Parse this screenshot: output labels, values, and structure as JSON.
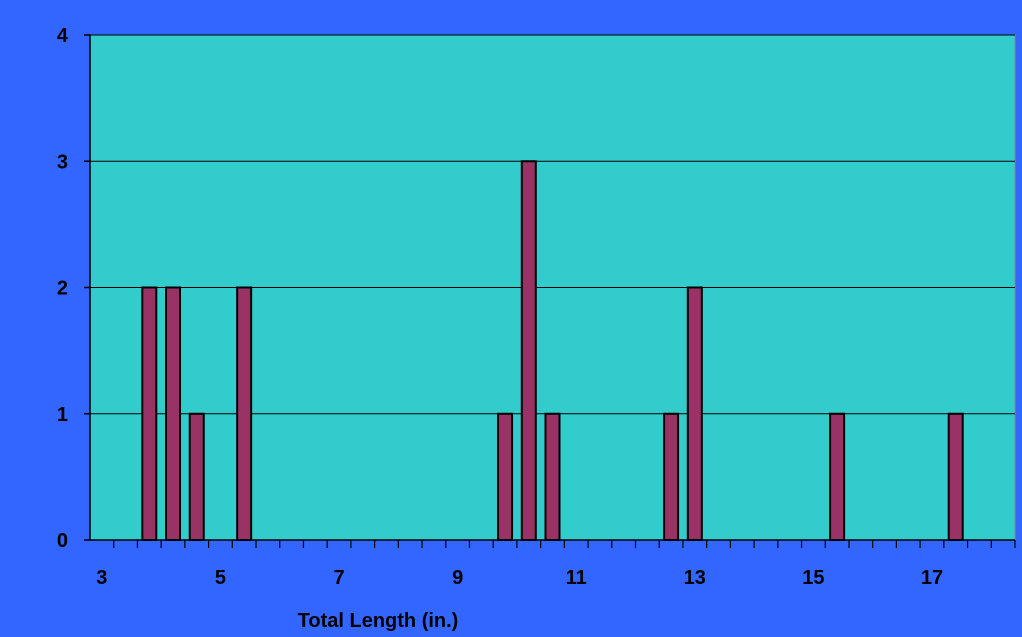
{
  "chart_data": {
    "type": "bar",
    "title": "",
    "xlabel": "Total Length (in.)",
    "ylabel": "",
    "x": [
      3.8,
      4.2,
      4.6,
      5.4,
      9.8,
      10.2,
      10.6,
      12.6,
      13.0,
      15.4,
      17.4
    ],
    "values": [
      2,
      2,
      1,
      2,
      1,
      3,
      1,
      1,
      2,
      1,
      1
    ],
    "xlim": [
      2.8,
      18.4
    ],
    "ylim": [
      0,
      4
    ],
    "x_ticks": [
      3,
      5,
      7,
      9,
      11,
      13,
      15,
      17
    ],
    "x_tick_labels": [
      "3",
      "5",
      "7",
      "9",
      "11",
      "13",
      "15",
      "17"
    ],
    "y_ticks": [
      0,
      1,
      2,
      3,
      4
    ],
    "y_tick_labels": [
      "0",
      "1",
      "2",
      "3",
      "4"
    ],
    "grid": "horizontal",
    "legend": "none",
    "colors": {
      "background": "#3366FF",
      "plot_area": "#33CCCC",
      "bar_fill": "#993366",
      "bar_stroke": "#000000",
      "gridline": "#000000",
      "text": "#000000"
    }
  }
}
